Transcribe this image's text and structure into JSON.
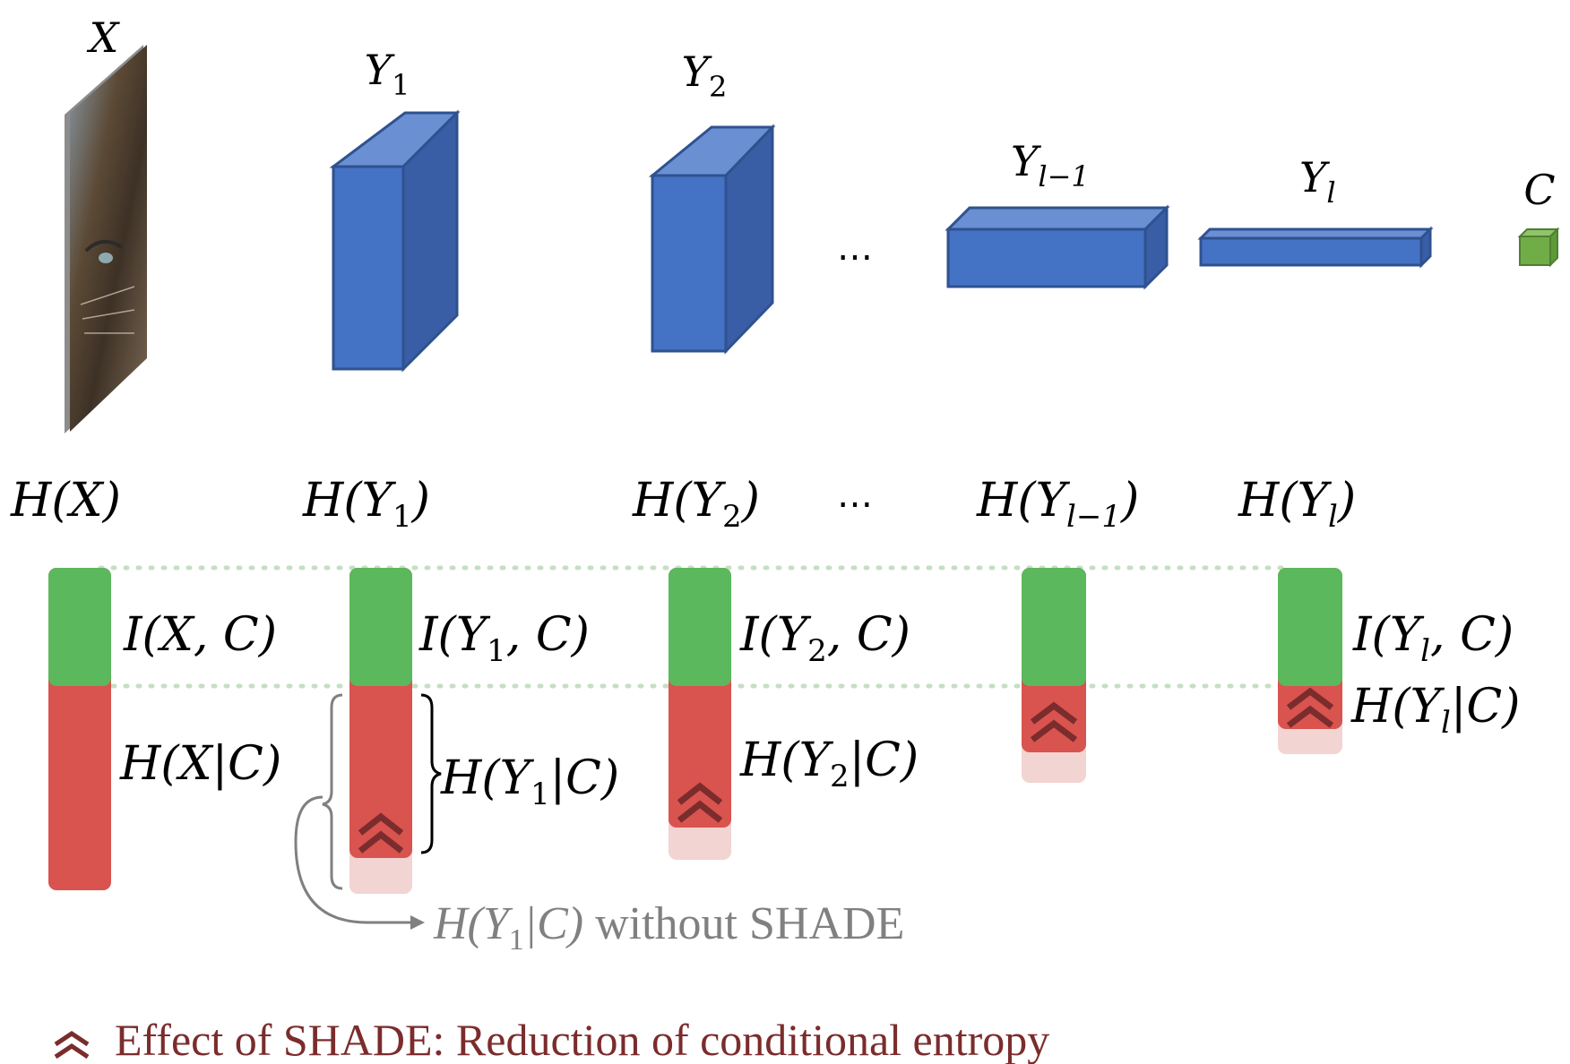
{
  "layers": {
    "input": "X",
    "y1_base": "Y",
    "y1_sub": "1",
    "y2_base": "Y",
    "y2_sub": "2",
    "ellipsis": "…",
    "ylm1_base": "Y",
    "ylm1_sub": "l−1",
    "yl_base": "Y",
    "yl_sub": "l",
    "output": "C"
  },
  "entropy": {
    "hx": "H(X)",
    "hy1_pre": "H(Y",
    "hy1_sub": "1",
    "hy1_post": ")",
    "hy2_pre": "H(Y",
    "hy2_sub": "2",
    "hy2_post": ")",
    "ellipsis": "…",
    "hylm1_pre": "H(Y",
    "hylm1_sub": "l−1",
    "hylm1_post": ")",
    "hyl_pre": "H(Y",
    "hyl_sub": "l",
    "hyl_post": ")"
  },
  "bars": {
    "ixc": "I(X, C)",
    "hxc": "H(X|C)",
    "iy1c_pre": "I(Y",
    "iy1c_sub": "1",
    "iy1c_post": ", C)",
    "hy1c_pre": "H(Y",
    "hy1c_sub": "1",
    "hy1c_post": "|C)",
    "iy2c_pre": "I(Y",
    "iy2c_sub": "2",
    "iy2c_post": ", C)",
    "hy2c_pre": "H(Y",
    "hy2c_sub": "2",
    "hy2c_post": "|C)",
    "iylc_pre": "I(Y",
    "iylc_sub": "l",
    "iylc_post": ", C)",
    "hylc_pre": "H(Y",
    "hylc_sub": "l",
    "hylc_post": "|C)"
  },
  "annotation": {
    "pre": "H(Y",
    "sub": "1",
    "post": "|C)",
    "tail": " without SHADE"
  },
  "legend": {
    "text": "Effect of SHADE: Reduction of conditional entropy"
  },
  "colors": {
    "layer_blue": "#4472c4",
    "mutual_info_green": "#5cb85c",
    "conditional_entropy_red": "#d9534f",
    "removed_entropy_pink": "#f2d4d2",
    "chevron": "#7b2c2c",
    "output_green": "#70ad47"
  }
}
